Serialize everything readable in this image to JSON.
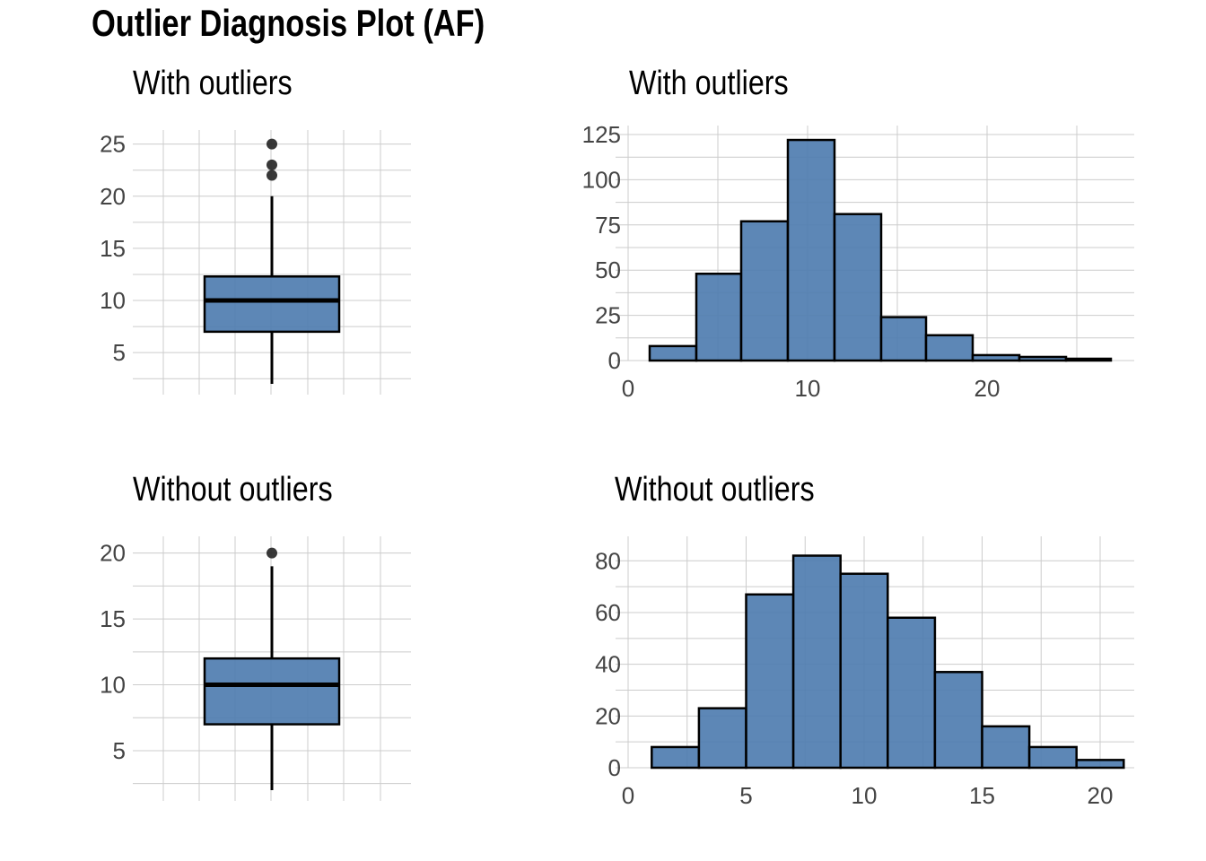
{
  "title": "Outlier Diagnosis Plot (AF)",
  "colors": {
    "fill": "#4f7db0",
    "outline": "#000000",
    "grid": "#cccccc",
    "tick_text": "#444444"
  },
  "chart_data": [
    {
      "type": "boxplot",
      "title": "With outliers",
      "ylim": [
        2,
        26
      ],
      "yticks": [
        5,
        10,
        15,
        20,
        25
      ],
      "grid": true,
      "stats": {
        "min": 2,
        "q1": 7,
        "median": 10,
        "q3": 12.3,
        "whisker_high": 20,
        "outliers": [
          22,
          23,
          25
        ]
      }
    },
    {
      "type": "bar",
      "title": "With outliers",
      "xlim": [
        0,
        28
      ],
      "ylim": [
        0,
        125
      ],
      "xticks": [
        0,
        10,
        20
      ],
      "yticks": [
        0,
        25,
        50,
        75,
        100,
        125
      ],
      "grid": true,
      "bins": [
        {
          "x0": 1.2,
          "x1": 3.8,
          "count": 8
        },
        {
          "x0": 3.8,
          "x1": 6.3,
          "count": 48
        },
        {
          "x0": 6.3,
          "x1": 8.9,
          "count": 77
        },
        {
          "x0": 8.9,
          "x1": 11.5,
          "count": 122
        },
        {
          "x0": 11.5,
          "x1": 14.1,
          "count": 81
        },
        {
          "x0": 14.1,
          "x1": 16.6,
          "count": 24
        },
        {
          "x0": 16.6,
          "x1": 19.2,
          "count": 14
        },
        {
          "x0": 19.2,
          "x1": 21.8,
          "count": 3
        },
        {
          "x0": 21.8,
          "x1": 24.4,
          "count": 2
        },
        {
          "x0": 24.4,
          "x1": 26.9,
          "count": 1
        }
      ]
    },
    {
      "type": "boxplot",
      "title": "Without outliers",
      "ylim": [
        2,
        21
      ],
      "yticks": [
        5,
        10,
        15,
        20
      ],
      "grid": true,
      "stats": {
        "min": 2,
        "q1": 7,
        "median": 10,
        "q3": 12,
        "whisker_high": 19,
        "outliers": [
          20
        ]
      }
    },
    {
      "type": "bar",
      "title": "Without outliers",
      "xlim": [
        0,
        22
      ],
      "ylim": [
        0,
        86
      ],
      "xticks": [
        0,
        5,
        10,
        15,
        20
      ],
      "yticks": [
        0,
        20,
        40,
        60,
        80
      ],
      "grid": true,
      "bins": [
        {
          "x0": 1,
          "x1": 3,
          "count": 8
        },
        {
          "x0": 3,
          "x1": 5,
          "count": 23
        },
        {
          "x0": 5,
          "x1": 7,
          "count": 67
        },
        {
          "x0": 7,
          "x1": 9,
          "count": 82
        },
        {
          "x0": 9,
          "x1": 11,
          "count": 75
        },
        {
          "x0": 11,
          "x1": 13,
          "count": 58
        },
        {
          "x0": 13,
          "x1": 15,
          "count": 37
        },
        {
          "x0": 15,
          "x1": 17,
          "count": 16
        },
        {
          "x0": 17,
          "x1": 19,
          "count": 8
        },
        {
          "x0": 19,
          "x1": 21,
          "count": 3
        }
      ]
    }
  ]
}
